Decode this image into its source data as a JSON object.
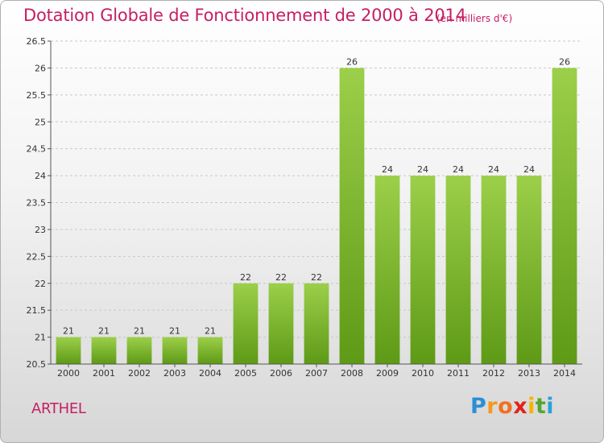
{
  "header": {
    "title": "Dotation Globale de Fonctionnement de 2000 à 2014",
    "subtitle": "(en milliers d'€)"
  },
  "footer": {
    "commune": "ARTHEL",
    "logo": [
      "P",
      "r",
      "o",
      "x",
      "i",
      "t",
      "i"
    ]
  },
  "chart_data": {
    "type": "bar",
    "title": "Dotation Globale de Fonctionnement de 2000 à 2014",
    "subtitle": "(en milliers d'€)",
    "xlabel": "",
    "ylabel": "",
    "categories": [
      "2000",
      "2001",
      "2002",
      "2003",
      "2004",
      "2005",
      "2006",
      "2007",
      "2008",
      "2009",
      "2010",
      "2011",
      "2012",
      "2013",
      "2014"
    ],
    "values": [
      21,
      21,
      21,
      21,
      21,
      22,
      22,
      22,
      26,
      24,
      24,
      24,
      24,
      24,
      26
    ],
    "data_labels": [
      "21",
      "21",
      "21",
      "21",
      "21",
      "22",
      "22",
      "22",
      "26",
      "24",
      "24",
      "24",
      "24",
      "24",
      "26"
    ],
    "ylim": [
      20.5,
      26.5
    ],
    "yticks": [
      "20.5",
      "21",
      "21.5",
      "22",
      "22.5",
      "23",
      "23.5",
      "24",
      "24.5",
      "25",
      "25.5",
      "26",
      "26.5"
    ],
    "grid": "horizontal dashed",
    "colors": {
      "bar_light": "#9ccf4a",
      "bar_dark": "#5e9a16",
      "grid": "#c8c8c8",
      "axis": "#555555",
      "text": "#333333",
      "accent": "#c51f63"
    }
  }
}
